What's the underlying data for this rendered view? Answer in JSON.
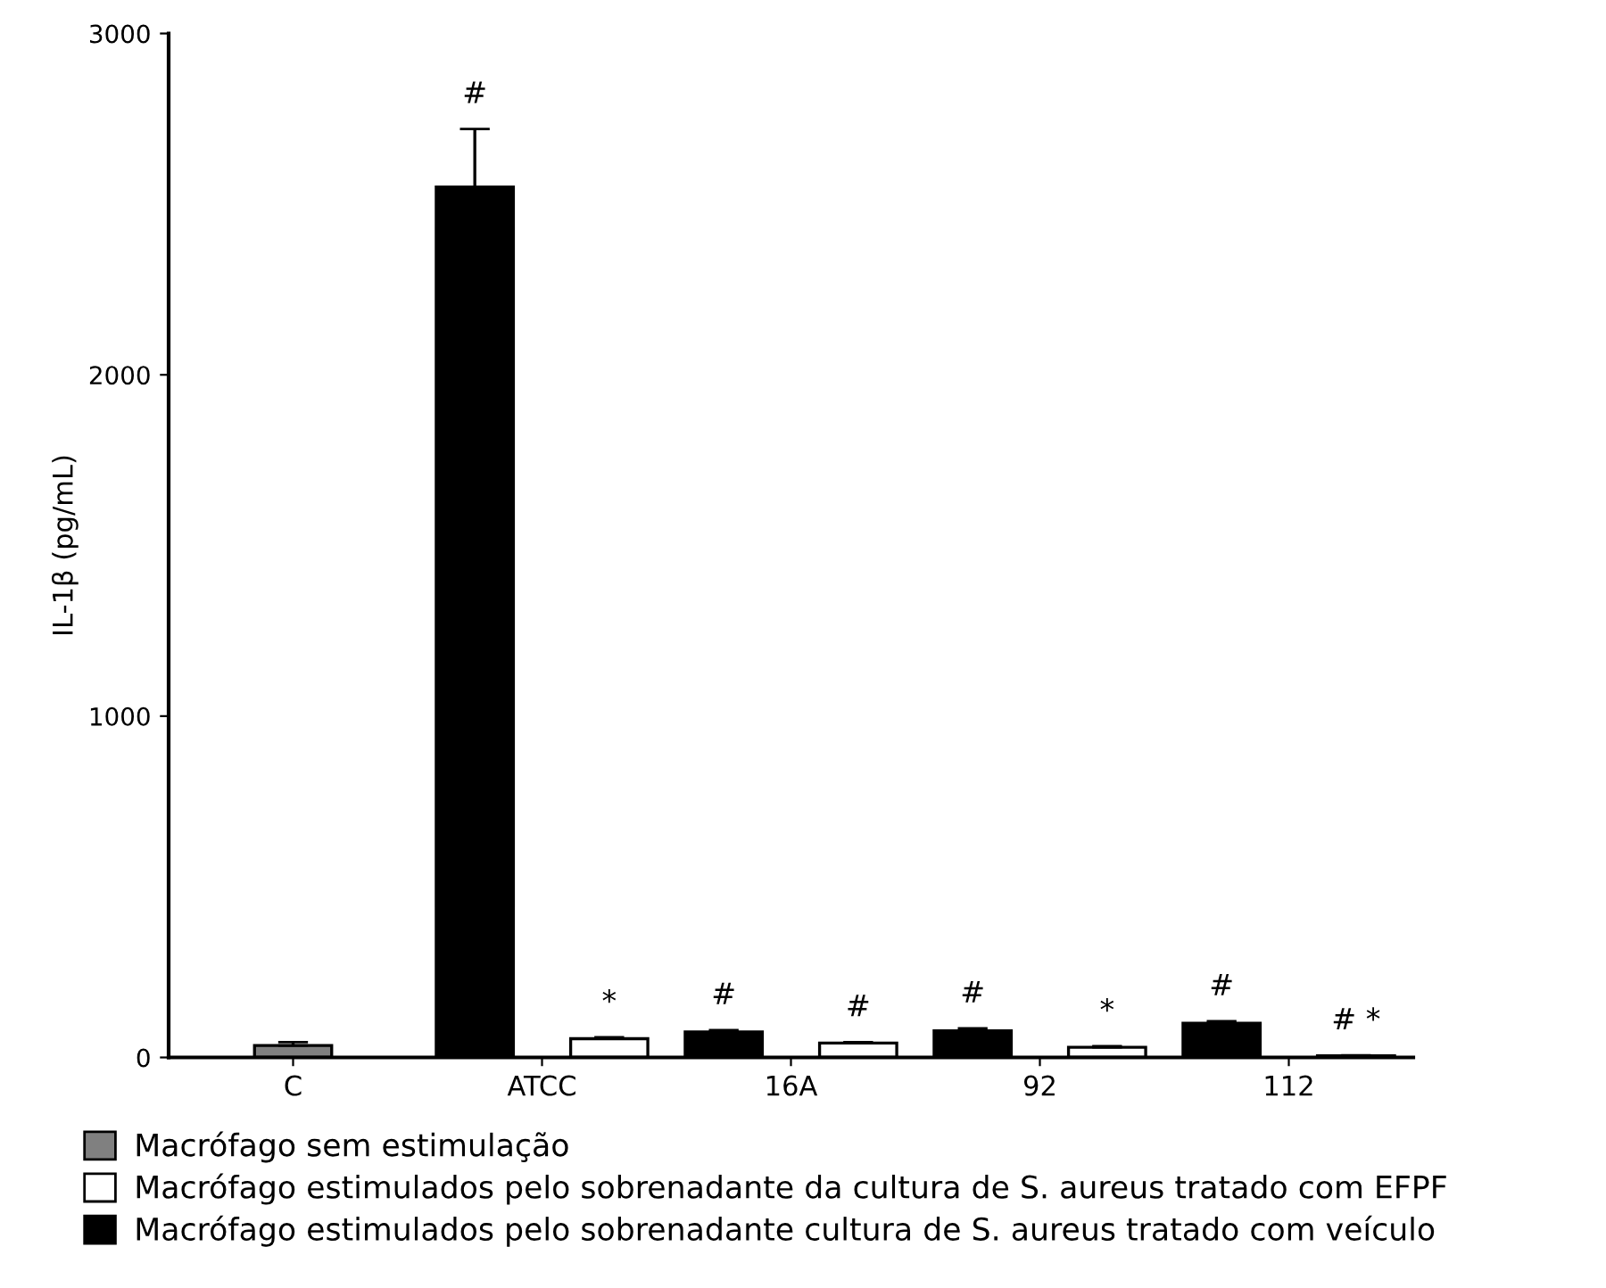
{
  "chart_data": {
    "type": "bar",
    "ylabel": "IL-1β (pg/mL)",
    "categories": [
      "C",
      "ATCC",
      "16A",
      "92",
      "112"
    ],
    "series": [
      {
        "name": "Macrófago sem estimulação",
        "color": "#808080",
        "values": [
          35,
          null,
          null,
          null,
          null
        ],
        "errors": [
          10,
          null,
          null,
          null,
          null
        ]
      },
      {
        "name": "Macrófago estimulados pelo sobrenadante da cultura de S. aureus tratado com EFPF",
        "color": "#ffffff",
        "values": [
          null,
          55,
          42,
          30,
          5
        ],
        "errors": [
          null,
          4,
          3,
          3,
          1
        ],
        "value_labels": [
          null,
          "*",
          "#",
          "*",
          "# *"
        ]
      },
      {
        "name": "Macrófago estimulados pelo sobrenadante cultura de S. aureus tratado com veículo",
        "color": "#000000",
        "values": [
          null,
          2550,
          75,
          78,
          100
        ],
        "errors": [
          null,
          170,
          5,
          7,
          6
        ],
        "value_labels": [
          null,
          "#",
          "#",
          "#",
          "#"
        ]
      }
    ],
    "ylim": [
      0,
      3000
    ],
    "yticks": [
      0,
      1000,
      2000,
      3000
    ],
    "grid": false,
    "legend": "bottom"
  }
}
